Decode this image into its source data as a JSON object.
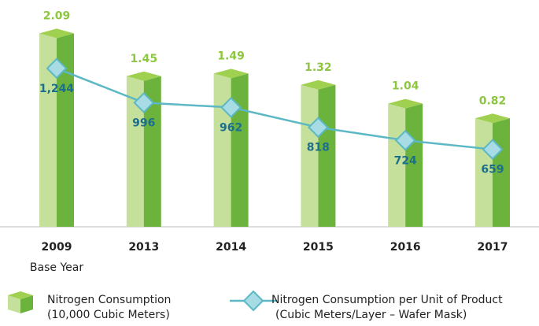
{
  "chart_data": {
    "type": "bar_line",
    "categories": [
      "2009",
      "2013",
      "2014",
      "2015",
      "2016",
      "2017"
    ],
    "base_label": "Base Year",
    "series": [
      {
        "name": "Nitrogen Consumption",
        "unit": "(10,000 Cubic Meters)",
        "type": "bar",
        "color": "#8dc63f",
        "values": [
          2.09,
          1.45,
          1.49,
          1.32,
          1.04,
          0.82
        ]
      },
      {
        "name": "Nitrogen Consumption per Unit of Product",
        "unit": "(Cubic Meters/Layer – Wafer Mask)",
        "type": "line",
        "axis": "y2",
        "color": "#5bb8c4",
        "values": [
          1244,
          996,
          962,
          818,
          724,
          659
        ],
        "value_labels": [
          "1,244",
          "996",
          "962",
          "818",
          "724",
          "659"
        ]
      }
    ],
    "ylim": [
      -0.8,
      2.2
    ],
    "y2lim": [
      100,
      1550
    ]
  }
}
